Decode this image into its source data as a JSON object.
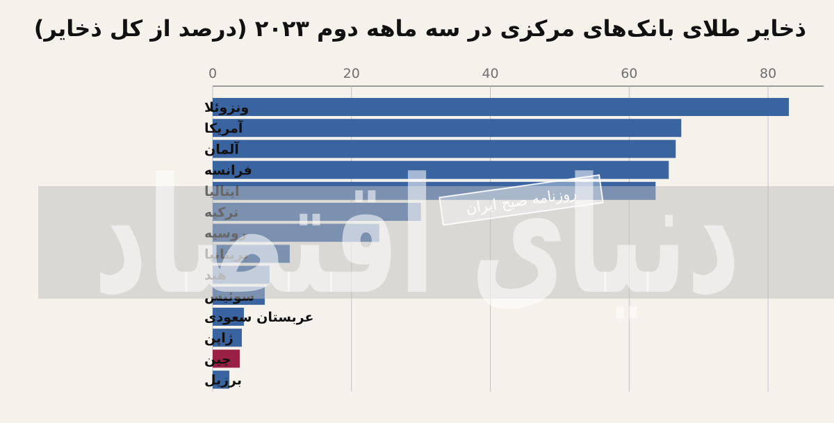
{
  "chart_data": {
    "type": "bar",
    "orientation": "horizontal",
    "title": "ذخایر طلای بانک‌های مرکزی در سه ماهه دوم ۲۰۲۳ (درصد از کل ذخایر)",
    "categories": [
      "ونزوئلا",
      "آمریکا",
      "آلمان",
      "فرانسه",
      "ایتالیا",
      "ترکیه",
      "روسیه",
      "بریتانیا",
      "هند",
      "سوئیس",
      "عربستان سعودی",
      "ژاپن",
      "چین",
      "برزیل"
    ],
    "values": [
      83,
      67.5,
      66.7,
      65.7,
      63.8,
      30,
      24,
      11.1,
      8.2,
      7.5,
      4.5,
      4.2,
      3.9,
      2.4
    ],
    "highlight": "چین",
    "xlim": [
      0,
      88
    ],
    "xticks": [
      0,
      20,
      40,
      60,
      80
    ],
    "xlabel": "",
    "ylabel": "",
    "grid": true,
    "legend": "none",
    "colors": {
      "bar": "#3a64a0",
      "highlight": "#9a1f45",
      "grid": "#bcc2cc",
      "background": "#f5f2ec"
    }
  },
  "watermark": {
    "banner_text": "روزنامه صبح ایران",
    "logo_text": "دنیای اقتصاد"
  }
}
